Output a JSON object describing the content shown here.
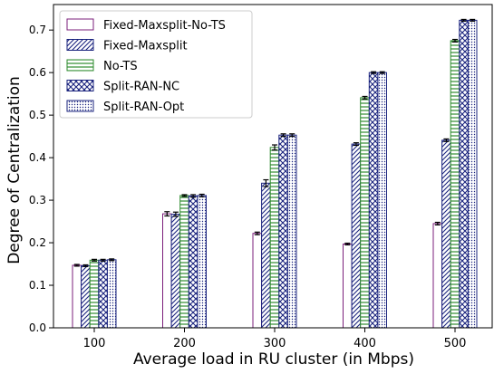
{
  "chart_data": {
    "type": "bar",
    "title": "",
    "xlabel": "Average load in RU cluster (in Mbps)",
    "ylabel": "Degree of Centralization",
    "categories": [
      "100",
      "200",
      "300",
      "400",
      "500"
    ],
    "ylim": [
      0,
      0.76
    ],
    "yticks": [
      "0.0",
      "0.1",
      "0.2",
      "0.3",
      "0.4",
      "0.5",
      "0.6",
      "0.7"
    ],
    "legend_position": "top-left",
    "grid": false,
    "series": [
      {
        "name": "Fixed-Maxsplit-No-TS",
        "color": "#7b1f7b",
        "pattern": "none",
        "values": [
          0.147,
          0.268,
          0.222,
          0.197,
          0.245
        ],
        "errors": [
          0.002,
          0.005,
          0.003,
          0.002,
          0.003
        ]
      },
      {
        "name": "Fixed-Maxsplit",
        "color": "#1a237e",
        "pattern": "diagonal",
        "values": [
          0.146,
          0.267,
          0.34,
          0.432,
          0.441
        ],
        "errors": [
          0.002,
          0.005,
          0.008,
          0.003,
          0.003
        ]
      },
      {
        "name": "No-TS",
        "color": "#2e8b2e",
        "pattern": "horizontal",
        "values": [
          0.159,
          0.311,
          0.424,
          0.541,
          0.675
        ],
        "errors": [
          0.002,
          0.002,
          0.006,
          0.003,
          0.003
        ]
      },
      {
        "name": "Split-RAN-NC",
        "color": "#1a237e",
        "pattern": "crosshatch",
        "values": [
          0.159,
          0.31,
          0.453,
          0.6,
          0.723
        ],
        "errors": [
          0.002,
          0.003,
          0.003,
          0.002,
          0.002
        ]
      },
      {
        "name": "Split-RAN-Opt",
        "color": "#1a237e",
        "pattern": "dots",
        "values": [
          0.16,
          0.311,
          0.453,
          0.6,
          0.723
        ],
        "errors": [
          0.002,
          0.003,
          0.003,
          0.002,
          0.002
        ]
      }
    ]
  }
}
